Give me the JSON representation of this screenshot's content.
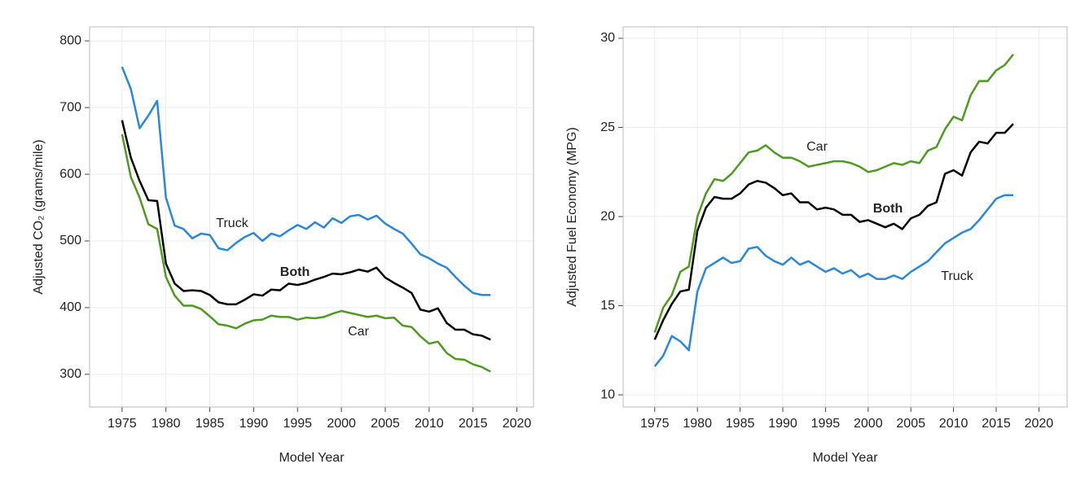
{
  "chart_data": [
    {
      "type": "line",
      "x_label": "Model Year",
      "y_label": "Adjusted CO₂ (grams/mile)",
      "x": [
        1975,
        1976,
        1977,
        1978,
        1979,
        1980,
        1981,
        1982,
        1983,
        1984,
        1985,
        1986,
        1987,
        1988,
        1989,
        1990,
        1991,
        1992,
        1993,
        1994,
        1995,
        1996,
        1997,
        1998,
        1999,
        2000,
        2001,
        2002,
        2003,
        2004,
        2005,
        2006,
        2007,
        2008,
        2009,
        2010,
        2011,
        2012,
        2013,
        2014,
        2015,
        2016,
        2017
      ],
      "xlim": [
        1971.3,
        2021.9
      ],
      "xticks": [
        1975,
        1980,
        1985,
        1990,
        1995,
        2000,
        2005,
        2010,
        2015,
        2020
      ],
      "ylim": [
        251,
        821
      ],
      "yticks": [
        300,
        400,
        500,
        600,
        700,
        800
      ],
      "grid": true,
      "series": [
        {
          "name": "Truck",
          "color": "#2b87d8",
          "values": [
            761,
            728,
            669,
            688,
            710,
            565,
            523,
            518,
            504,
            511,
            509,
            489,
            486,
            497,
            506,
            512,
            500,
            511,
            507,
            516,
            524,
            518,
            528,
            520,
            534,
            527,
            537,
            539,
            532,
            538,
            526,
            518,
            511,
            496,
            480,
            474,
            466,
            460,
            446,
            433,
            422,
            419,
            419
          ]
        },
        {
          "name": "Both",
          "color": "#000000",
          "values": [
            681,
            625,
            590,
            561,
            560,
            466,
            436,
            425,
            426,
            425,
            419,
            408,
            405,
            405,
            412,
            420,
            418,
            427,
            426,
            436,
            434,
            437,
            442,
            446,
            451,
            450,
            453,
            457,
            454,
            460,
            445,
            437,
            430,
            422,
            397,
            394,
            399,
            377,
            367,
            367,
            360,
            358,
            352
          ]
        },
        {
          "name": "Car",
          "color": "#4e9a1f",
          "values": [
            660,
            596,
            565,
            525,
            518,
            446,
            418,
            403,
            403,
            398,
            387,
            375,
            373,
            369,
            376,
            381,
            382,
            388,
            386,
            386,
            382,
            385,
            384,
            386,
            391,
            395,
            392,
            389,
            386,
            388,
            384,
            385,
            373,
            371,
            357,
            346,
            349,
            332,
            323,
            322,
            315,
            311,
            304
          ]
        }
      ]
    },
    {
      "type": "line",
      "x_label": "Model Year",
      "y_label": "Adjusted Fuel Economy (MPG)",
      "x": [
        1975,
        1976,
        1977,
        1978,
        1979,
        1980,
        1981,
        1982,
        1983,
        1984,
        1985,
        1986,
        1987,
        1988,
        1989,
        1990,
        1991,
        1992,
        1993,
        1994,
        1995,
        1996,
        1997,
        1998,
        1999,
        2000,
        2001,
        2002,
        2003,
        2004,
        2005,
        2006,
        2007,
        2008,
        2009,
        2010,
        2011,
        2012,
        2013,
        2014,
        2015,
        2016,
        2017
      ],
      "xlim": [
        1971.3,
        2023.3
      ],
      "xticks": [
        1975,
        1980,
        1985,
        1990,
        1995,
        2000,
        2005,
        2010,
        2015,
        2020
      ],
      "ylim": [
        9.32,
        30.64
      ],
      "yticks": [
        10,
        15,
        20,
        25,
        30
      ],
      "grid": true,
      "series": [
        {
          "name": "Car",
          "color": "#4e9a1f",
          "values": [
            13.5,
            14.9,
            15.6,
            16.9,
            17.2,
            20.0,
            21.3,
            22.1,
            22.0,
            22.4,
            23.0,
            23.6,
            23.7,
            24.0,
            23.6,
            23.3,
            23.3,
            23.1,
            22.8,
            22.9,
            23.0,
            23.1,
            23.1,
            23.0,
            22.8,
            22.5,
            22.6,
            22.8,
            23.0,
            22.9,
            23.1,
            23.0,
            23.7,
            23.9,
            24.9,
            25.6,
            25.4,
            26.8,
            27.6,
            27.6,
            28.2,
            28.5,
            29.1
          ]
        },
        {
          "name": "Both",
          "color": "#000000",
          "values": [
            13.1,
            14.2,
            15.1,
            15.8,
            15.9,
            19.2,
            20.5,
            21.1,
            21.0,
            21.0,
            21.3,
            21.8,
            22.0,
            21.9,
            21.6,
            21.2,
            21.3,
            20.8,
            20.8,
            20.4,
            20.5,
            20.4,
            20.1,
            20.1,
            19.7,
            19.8,
            19.6,
            19.4,
            19.6,
            19.3,
            19.9,
            20.1,
            20.6,
            20.8,
            22.4,
            22.6,
            22.3,
            23.6,
            24.2,
            24.1,
            24.7,
            24.7,
            25.2
          ]
        },
        {
          "name": "Truck",
          "color": "#2b87d8",
          "values": [
            11.6,
            12.2,
            13.3,
            13.0,
            12.5,
            15.8,
            17.1,
            17.4,
            17.7,
            17.4,
            17.5,
            18.2,
            18.3,
            17.8,
            17.5,
            17.3,
            17.7,
            17.3,
            17.5,
            17.2,
            16.9,
            17.1,
            16.8,
            17.0,
            16.6,
            16.8,
            16.5,
            16.5,
            16.7,
            16.5,
            16.9,
            17.2,
            17.5,
            18.0,
            18.5,
            18.8,
            19.1,
            19.3,
            19.8,
            20.4,
            21.0,
            21.2,
            21.2
          ]
        }
      ]
    }
  ]
}
